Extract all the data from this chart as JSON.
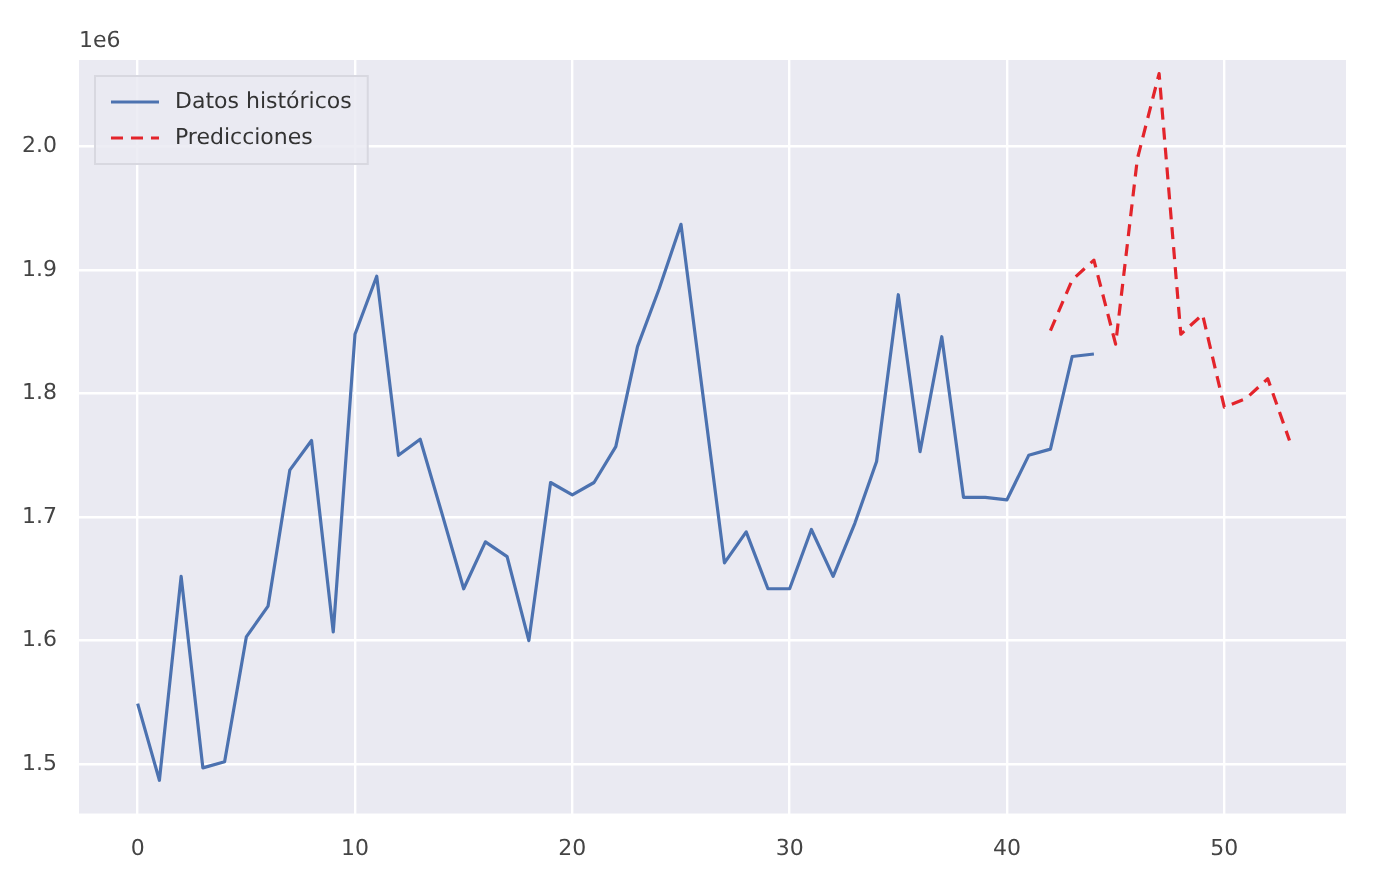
{
  "chart_data": {
    "type": "line",
    "x": [
      0,
      1,
      2,
      3,
      4,
      5,
      6,
      7,
      8,
      9,
      10,
      11,
      12,
      13,
      14,
      15,
      16,
      17,
      18,
      19,
      20,
      21,
      22,
      23,
      24,
      25,
      26,
      27,
      28,
      29,
      30,
      31,
      32,
      33,
      34,
      35,
      36,
      37,
      38,
      39,
      40,
      41,
      42,
      43,
      44
    ],
    "series": [
      {
        "name": "Datos históricos",
        "color": "#4c72b0",
        "line_style": "solid",
        "values": [
          1.549,
          1.487,
          1.652,
          1.497,
          1.502,
          1.603,
          1.628,
          1.738,
          1.762,
          1.607,
          1.848,
          1.895,
          1.75,
          1.763,
          1.703,
          1.642,
          1.68,
          1.668,
          1.6,
          1.728,
          1.718,
          1.728,
          1.757,
          1.838,
          1.885,
          1.937,
          1.8,
          1.663,
          1.688,
          1.642,
          1.642,
          1.69,
          1.652,
          1.695,
          1.745,
          1.88,
          1.753,
          1.846,
          1.716,
          1.716,
          1.714,
          1.75,
          1.755,
          1.83,
          1.832
        ]
      },
      {
        "name": "Predicciones",
        "color": "#e3242b",
        "line_style": "dashed",
        "x": [
          42,
          43,
          44,
          45,
          46,
          47,
          48,
          49,
          50,
          51,
          52,
          53
        ],
        "values": [
          1.851,
          1.892,
          1.908,
          1.84,
          1.99,
          2.059,
          1.848,
          1.864,
          1.789,
          1.796,
          1.812,
          1.762
        ]
      }
    ],
    "xlim": [
      -2.7,
      55.6
    ],
    "xticks": [
      0,
      10,
      20,
      30,
      40,
      50
    ],
    "ylim": [
      1.46,
      2.07
    ],
    "yticks": [
      1.5,
      1.6,
      1.7,
      1.8,
      1.9,
      {
        "value": 2,
        "label": "2.0"
      }
    ],
    "annotations": [
      "1e6"
    ],
    "grid": true,
    "legend": "top left",
    "marker": "none"
  }
}
